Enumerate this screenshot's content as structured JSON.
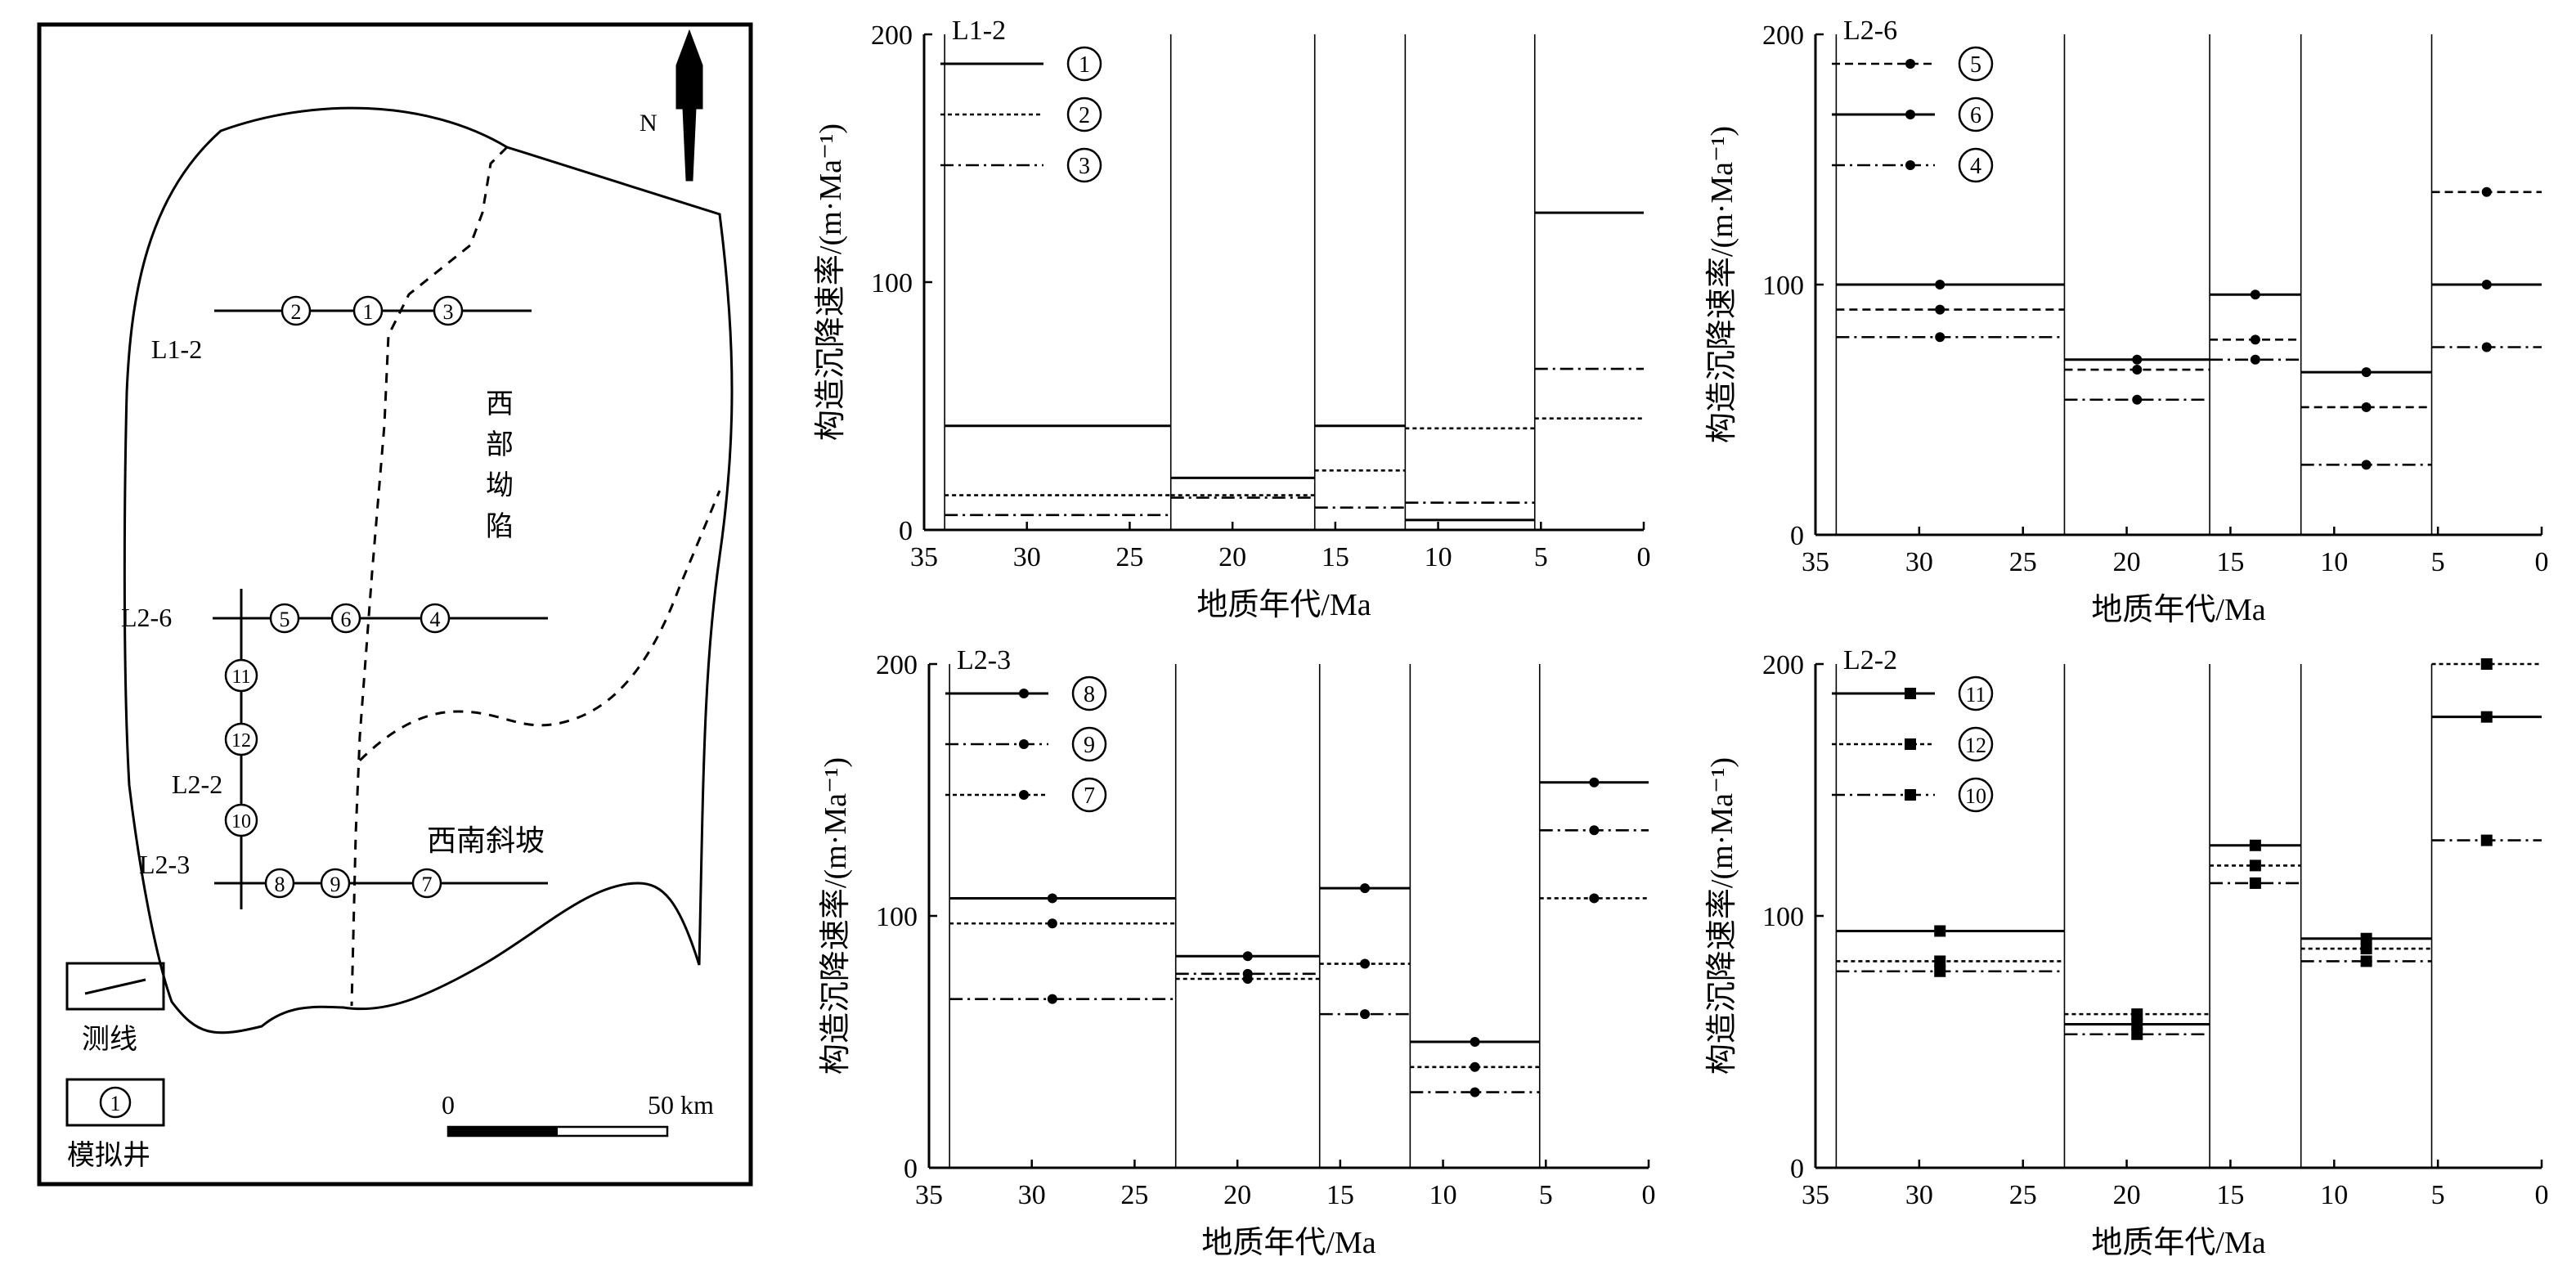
{
  "map": {
    "north_label": "N",
    "region_labels": [
      "西",
      "部",
      "坳",
      "陷"
    ],
    "slope_label": "西南斜坡",
    "lines": [
      {
        "name": "L1-2",
        "wells": [
          "2",
          "1",
          "3"
        ]
      },
      {
        "name": "L2-6",
        "wells": [
          "5",
          "6",
          "4"
        ]
      },
      {
        "name": "L2-2",
        "wells": [
          "11",
          "12",
          "10"
        ]
      },
      {
        "name": "L2-3",
        "wells": [
          "8",
          "9",
          "7"
        ]
      }
    ],
    "legend": {
      "line_label": "测线",
      "well_label": "模拟井",
      "well_symbol": "1"
    },
    "scale": {
      "start": "0",
      "end": "50 km"
    }
  },
  "chart_data": [
    {
      "type": "line",
      "title": "L1-2",
      "xlabel": "地质年代/Ma",
      "ylabel": "构造沉降速率/(m·Ma⁻¹)",
      "xlim": [
        35,
        0
      ],
      "ylim": [
        0,
        200
      ],
      "xticks": [
        "35",
        "30",
        "25",
        "20",
        "15",
        "10",
        "5",
        "0"
      ],
      "yticks": [
        "0",
        "100",
        "200"
      ],
      "intervals": [
        [
          34,
          23
        ],
        [
          23,
          16
        ],
        [
          16,
          11.6
        ],
        [
          11.6,
          5.3
        ],
        [
          5.3,
          0
        ]
      ],
      "series": [
        {
          "name": "1",
          "style": "solid",
          "values": [
            42,
            21,
            42,
            4,
            128
          ]
        },
        {
          "name": "2",
          "style": "dotted",
          "values": [
            14,
            14,
            24,
            41,
            45
          ]
        },
        {
          "name": "3",
          "style": "dashdot",
          "values": [
            6,
            13,
            9,
            11,
            65
          ]
        }
      ]
    },
    {
      "type": "line",
      "title": "L2-6",
      "xlabel": "地质年代/Ma",
      "ylabel": "构造沉降速率/(m·Ma⁻¹)",
      "xlim": [
        35,
        0
      ],
      "ylim": [
        0,
        200
      ],
      "xticks": [
        "35",
        "30",
        "25",
        "20",
        "15",
        "10",
        "5",
        "0"
      ],
      "yticks": [
        "0",
        "100",
        "200"
      ],
      "intervals": [
        [
          34,
          23
        ],
        [
          23,
          16
        ],
        [
          16,
          11.6
        ],
        [
          11.6,
          5.3
        ],
        [
          5.3,
          0
        ]
      ],
      "marker": "circle",
      "series": [
        {
          "name": "5",
          "style": "dashed",
          "values": [
            90,
            66,
            78,
            51,
            137
          ]
        },
        {
          "name": "6",
          "style": "solid",
          "values": [
            100,
            70,
            96,
            65,
            100
          ]
        },
        {
          "name": "4",
          "style": "dashdot",
          "values": [
            79,
            54,
            70,
            28,
            75
          ]
        }
      ]
    },
    {
      "type": "line",
      "title": "L2-3",
      "xlabel": "地质年代/Ma",
      "ylabel": "构造沉降速率/(m·Ma⁻¹)",
      "xlim": [
        35,
        0
      ],
      "ylim": [
        0,
        200
      ],
      "xticks": [
        "35",
        "30",
        "25",
        "20",
        "15",
        "10",
        "5",
        "0"
      ],
      "yticks": [
        "0",
        "100",
        "200"
      ],
      "intervals": [
        [
          34,
          23
        ],
        [
          23,
          16
        ],
        [
          16,
          11.6
        ],
        [
          11.6,
          5.3
        ],
        [
          5.3,
          0
        ]
      ],
      "marker": "circle",
      "series": [
        {
          "name": "8",
          "style": "solid",
          "values": [
            107,
            84,
            111,
            50,
            153
          ]
        },
        {
          "name": "9",
          "style": "dashdot",
          "values": [
            67,
            77,
            61,
            30,
            134
          ]
        },
        {
          "name": "7",
          "style": "dotted",
          "values": [
            97,
            75,
            81,
            40,
            107
          ]
        }
      ]
    },
    {
      "type": "line",
      "title": "L2-2",
      "xlabel": "地质年代/Ma",
      "ylabel": "构造沉降速率/(m·Ma⁻¹)",
      "xlim": [
        35,
        0
      ],
      "ylim": [
        0,
        200
      ],
      "xticks": [
        "35",
        "30",
        "25",
        "20",
        "15",
        "10",
        "5",
        "0"
      ],
      "yticks": [
        "0",
        "100",
        "200"
      ],
      "intervals": [
        [
          34,
          23
        ],
        [
          23,
          16
        ],
        [
          16,
          11.6
        ],
        [
          11.6,
          5.3
        ],
        [
          5.3,
          0
        ]
      ],
      "marker": "square",
      "series": [
        {
          "name": "11",
          "style": "solid",
          "values": [
            94,
            57,
            128,
            91,
            179
          ]
        },
        {
          "name": "12",
          "style": "dotted",
          "values": [
            82,
            61,
            120,
            87,
            200
          ]
        },
        {
          "name": "10",
          "style": "dashdot",
          "values": [
            78,
            53,
            113,
            82,
            130
          ]
        }
      ]
    }
  ]
}
